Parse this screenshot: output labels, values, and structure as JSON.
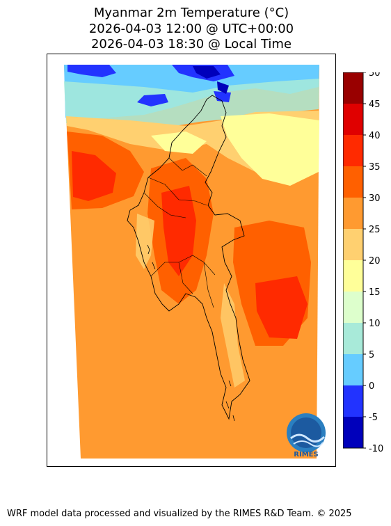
{
  "title": {
    "line1": "Myanmar 2m Temperature (°C)",
    "line2": "2026-04-03 12:00 @ UTC+00:00",
    "line3": "2026-04-03 18:30 @ Local Time"
  },
  "colorbar": {
    "ticks": [
      "50",
      "45",
      "40",
      "35",
      "30",
      "25",
      "20",
      "15",
      "10",
      "5",
      "0",
      "-5",
      "-10"
    ],
    "colors_top_to_bottom": [
      "#990000",
      "#e00000",
      "#ff2a00",
      "#ff6000",
      "#ff9a30",
      "#ffd070",
      "#ffff99",
      "#ddffcc",
      "#a8ead9",
      "#66ccff",
      "#2233ff",
      "#0000bb"
    ]
  },
  "logo": {
    "text": "RIMES"
  },
  "footer": "WRF model data processed and visualized by the RIMES R&D Team. © 2025"
}
